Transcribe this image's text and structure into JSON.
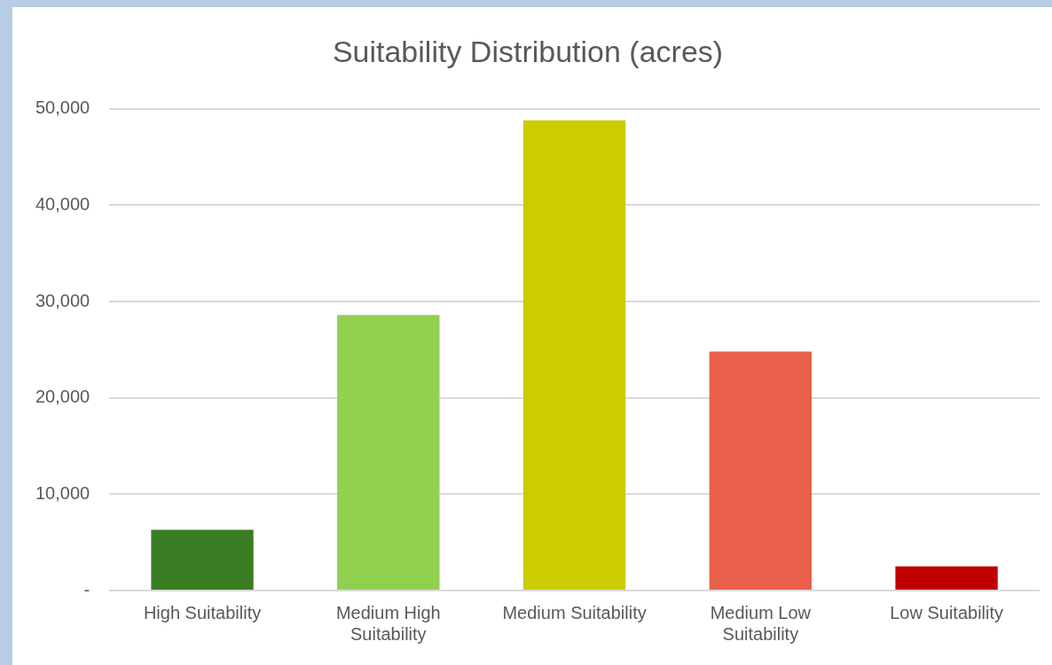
{
  "chart_data": {
    "type": "bar",
    "title": "Suitability Distribution (acres)",
    "categories": [
      "High Suitability",
      "Medium High Suitability",
      "Medium Suitability",
      "Medium Low Suitability",
      "Low Suitability"
    ],
    "values": [
      6300,
      28600,
      48800,
      24800,
      2500
    ],
    "colors": [
      "#3a7d22",
      "#92d050",
      "#cccc00",
      "#e9604a",
      "#c00000"
    ],
    "ylim": [
      0,
      50000
    ],
    "yticks": [
      {
        "value": 0,
        "label": "-"
      },
      {
        "value": 10000,
        "label": "10,000"
      },
      {
        "value": 20000,
        "label": "20,000"
      },
      {
        "value": 30000,
        "label": "30,000"
      },
      {
        "value": 40000,
        "label": "40,000"
      },
      {
        "value": 50000,
        "label": "50,000"
      }
    ],
    "grid": "y",
    "legend": false
  }
}
